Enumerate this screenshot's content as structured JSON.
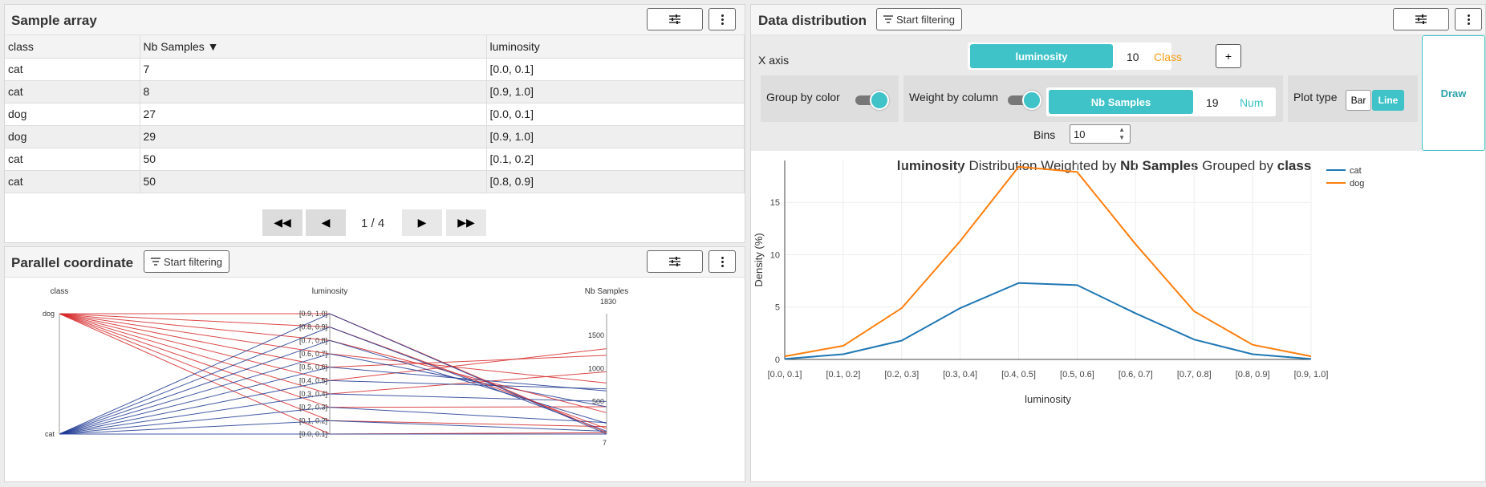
{
  "sample_array": {
    "title": "Sample array",
    "columns": [
      "class",
      "Nb Samples ▼",
      "luminosity"
    ],
    "rows": [
      [
        "cat",
        "7",
        "[0.0, 0.1]"
      ],
      [
        "cat",
        "8",
        "[0.9, 1.0]"
      ],
      [
        "dog",
        "27",
        "[0.0, 0.1]"
      ],
      [
        "dog",
        "29",
        "[0.9, 1.0]"
      ],
      [
        "cat",
        "50",
        "[0.1, 0.2]"
      ],
      [
        "cat",
        "50",
        "[0.8, 0.9]"
      ]
    ],
    "pager": {
      "first": "◀◀",
      "prev": "◀",
      "page": "1 / 4",
      "next": "▶",
      "last": "▶▶"
    }
  },
  "parallel": {
    "title": "Parallel coordinate",
    "filter_label": "Start filtering",
    "axes": [
      "class",
      "luminosity",
      "Nb Samples"
    ],
    "class_ticks": [
      "dog",
      "cat"
    ],
    "lum_ticks": [
      "[0.9, 1.0]",
      "[0.8, 0.9]",
      "[0.7, 0.8]",
      "[0.6, 0.7]",
      "[0.5, 0.6]",
      "[0.4, 0.5]",
      "[0.3, 0.4]",
      "[0.2, 0.3]",
      "[0.1, 0.2]",
      "[0.0, 0.1]"
    ],
    "nb_ticks": [
      "1830",
      "1500",
      "1000",
      "500",
      "7"
    ],
    "colors": {
      "dog": "#d62728",
      "cat": "#1f3a93"
    }
  },
  "distribution": {
    "title": "Data distribution",
    "filter_label": "Start filtering",
    "x_axis_label": "X axis",
    "x_column": "luminosity",
    "x_bins_value": "10",
    "x_type": "Class",
    "add_label": "+",
    "group_by_color_label": "Group by color",
    "weight_label": "Weight by column",
    "weight_column": "Nb Samples",
    "weight_value": "19",
    "weight_type": "Num",
    "plot_type_label": "Plot type",
    "plot_bar": "Bar",
    "plot_line": "Line",
    "bins_label": "Bins",
    "bins_value": "10",
    "draw_label": "Draw"
  },
  "chart_data": {
    "type": "line",
    "title_parts": [
      {
        "text": "luminosity",
        "bold": true
      },
      {
        "text": " Distribution Weighted by ",
        "bold": false
      },
      {
        "text": "Nb Samples",
        "bold": true
      },
      {
        "text": " Grouped by ",
        "bold": false
      },
      {
        "text": "class",
        "bold": true
      }
    ],
    "categories": [
      "[0.0, 0.1]",
      "[0.1, 0.2]",
      "[0.2, 0.3]",
      "[0.3, 0.4]",
      "[0.4, 0.5]",
      "[0.5, 0.6]",
      "[0.6, 0.7]",
      "[0.7, 0.8]",
      "[0.8, 0.9]",
      "[0.9, 1.0]"
    ],
    "series": [
      {
        "name": "cat",
        "color": "#1f77b4",
        "values": [
          0.05,
          0.5,
          1.8,
          4.9,
          7.3,
          7.1,
          4.4,
          1.9,
          0.5,
          0.05
        ]
      },
      {
        "name": "dog",
        "color": "#ff7f0e",
        "values": [
          0.3,
          1.3,
          4.9,
          11.3,
          18.4,
          17.9,
          11.0,
          4.6,
          1.4,
          0.3
        ]
      }
    ],
    "xlabel": "luminosity",
    "ylabel": "Density (%)",
    "ylim": [
      0,
      19
    ],
    "yticks": [
      0,
      5,
      10,
      15
    ],
    "legend": "top-right",
    "grid": true
  }
}
